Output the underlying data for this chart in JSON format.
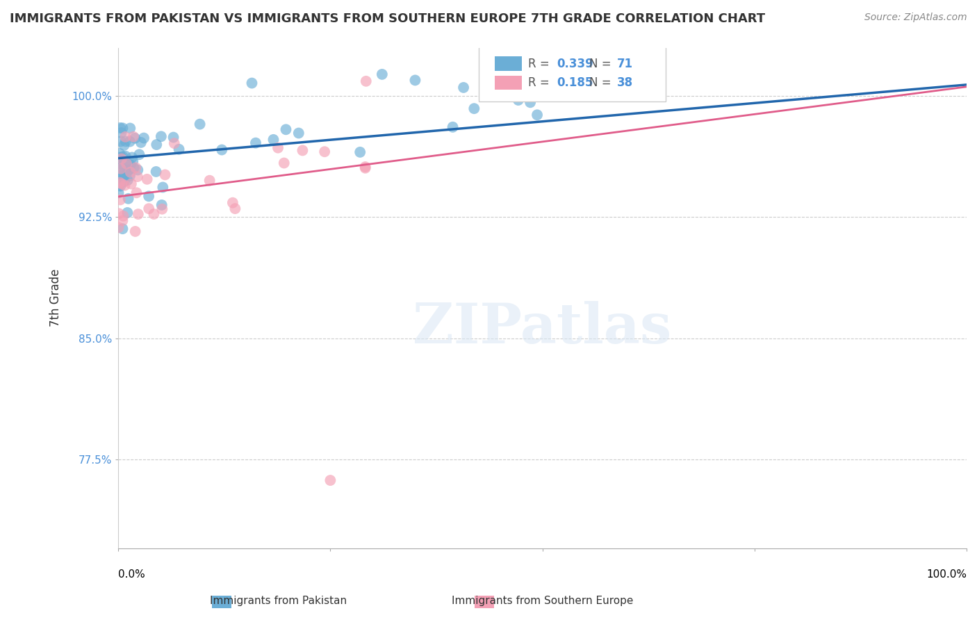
{
  "title": "IMMIGRANTS FROM PAKISTAN VS IMMIGRANTS FROM SOUTHERN EUROPE 7TH GRADE CORRELATION CHART",
  "source": "Source: ZipAtlas.com",
  "ylabel": "7th Grade",
  "yticks": [
    0.775,
    0.85,
    0.925,
    1.0
  ],
  "ytick_labels": [
    "77.5%",
    "85.0%",
    "92.5%",
    "100.0%"
  ],
  "xlim": [
    0.0,
    1.0
  ],
  "ylim": [
    0.72,
    1.03
  ],
  "series1_label": "Immigrants from Pakistan",
  "series1_R": 0.339,
  "series1_N": 71,
  "series1_color": "#6baed6",
  "series1_line_color": "#2166ac",
  "series2_label": "Immigrants from Southern Europe",
  "series2_R": 0.185,
  "series2_N": 38,
  "series2_color": "#f4a0b5",
  "series2_line_color": "#e05c8a",
  "blue_color": "#4a90d9",
  "pink_color": "#e87ca0"
}
